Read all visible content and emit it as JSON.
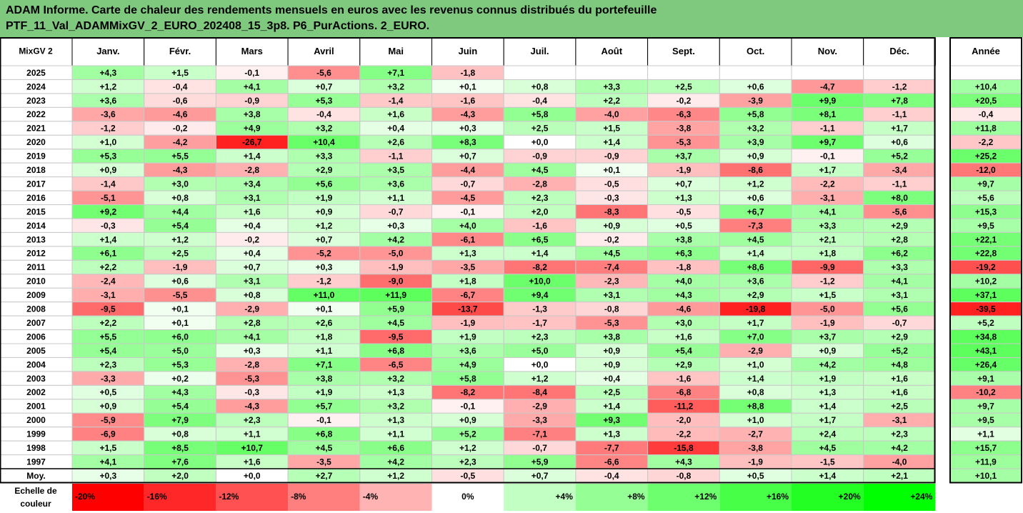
{
  "chart_data": {
    "type": "heatmap",
    "title_line1": "ADAM Informe. Carte de chaleur des rendements mensuels en euros avec les revenus connus distribués du portefeuille",
    "title_line2": "PTF_11_Val_ADAMMixGV_2_EURO_202408_15_3p8. P6_PurActions. 2_EURO.",
    "corner_label": "MixGV 2",
    "months": [
      "Janv.",
      "Févr.",
      "Mars",
      "Avril",
      "Mai",
      "Juin",
      "Juil.",
      "Août",
      "Sept.",
      "Oct.",
      "Nov.",
      "Déc."
    ],
    "year_header": "Année",
    "rows": [
      {
        "year": "2025",
        "values": [
          "+4,3",
          "+1,5",
          "-0,1",
          "-5,6",
          "+7,1",
          "-1,8",
          "",
          "",
          "",
          "",
          "",
          ""
        ],
        "annual": ""
      },
      {
        "year": "2024",
        "values": [
          "+1,2",
          "-0,4",
          "+4,1",
          "+0,7",
          "+3,2",
          "+0,1",
          "+0,8",
          "+3,3",
          "+2,5",
          "+0,6",
          "-4,7",
          "-1,2"
        ],
        "annual": "+10,4"
      },
      {
        "year": "2023",
        "values": [
          "+3,6",
          "-0,6",
          "-0,9",
          "+5,3",
          "-1,4",
          "-1,6",
          "-0,4",
          "+2,2",
          "-0,2",
          "-3,9",
          "+9,9",
          "+7,8"
        ],
        "annual": "+20,5"
      },
      {
        "year": "2022",
        "values": [
          "-3,6",
          "-4,6",
          "+3,8",
          "-0,4",
          "+1,6",
          "-4,3",
          "+5,8",
          "-4,0",
          "-6,3",
          "+5,8",
          "+8,1",
          "-1,1"
        ],
        "annual": "-0,4"
      },
      {
        "year": "2021",
        "values": [
          "-1,2",
          "-0,2",
          "+4,9",
          "+3,2",
          "+0,4",
          "+0,3",
          "+2,5",
          "+1,5",
          "-3,8",
          "+3,2",
          "-1,1",
          "+1,7"
        ],
        "annual": "+11,8"
      },
      {
        "year": "2020",
        "values": [
          "+1,0",
          "-4,2",
          "-26,7",
          "+10,4",
          "+2,6",
          "+8,3",
          "+0,0",
          "+1,4",
          "-5,3",
          "+3,9",
          "+9,7",
          "+0,6"
        ],
        "annual": "-2,2"
      },
      {
        "year": "2019",
        "values": [
          "+5,3",
          "+5,5",
          "+1,4",
          "+3,3",
          "-1,1",
          "+0,7",
          "-0,9",
          "-0,9",
          "+3,7",
          "+0,9",
          "-0,1",
          "+5,2"
        ],
        "annual": "+25,2"
      },
      {
        "year": "2018",
        "values": [
          "+0,9",
          "-4,3",
          "-2,8",
          "+2,9",
          "+3,5",
          "-4,4",
          "+4,5",
          "+0,1",
          "-1,9",
          "-8,6",
          "+1,7",
          "-3,4"
        ],
        "annual": "-12,0"
      },
      {
        "year": "2017",
        "values": [
          "-1,4",
          "+3,0",
          "+3,4",
          "+5,6",
          "+3,6",
          "-0,7",
          "-2,8",
          "-0,5",
          "+0,7",
          "+1,2",
          "-2,2",
          "-1,1"
        ],
        "annual": "+9,7"
      },
      {
        "year": "2016",
        "values": [
          "-5,1",
          "+0,8",
          "+3,1",
          "+1,9",
          "+1,1",
          "-4,5",
          "+2,3",
          "-0,3",
          "+1,3",
          "+0,6",
          "-3,1",
          "+8,0"
        ],
        "annual": "+5,6"
      },
      {
        "year": "2015",
        "values": [
          "+9,2",
          "+4,4",
          "+1,6",
          "+0,9",
          "-0,7",
          "-0,1",
          "+2,0",
          "-8,3",
          "-0,5",
          "+6,7",
          "+4,1",
          "-5,6"
        ],
        "annual": "+15,3"
      },
      {
        "year": "2014",
        "values": [
          "-0,3",
          "+5,4",
          "+0,4",
          "+1,2",
          "+0,3",
          "+4,0",
          "-1,6",
          "+0,9",
          "+0,5",
          "-7,3",
          "+3,3",
          "+2,9"
        ],
        "annual": "+9,5"
      },
      {
        "year": "2013",
        "values": [
          "+1,4",
          "+1,2",
          "-0,2",
          "+0,7",
          "+4,2",
          "-6,1",
          "+6,5",
          "-0,2",
          "+3,8",
          "+4,5",
          "+2,1",
          "+2,8"
        ],
        "annual": "+22,1"
      },
      {
        "year": "2012",
        "values": [
          "+6,1",
          "+2,5",
          "+0,4",
          "-5,2",
          "-5,0",
          "+1,3",
          "+1,4",
          "+4,5",
          "+6,3",
          "+1,4",
          "+1,8",
          "+6,2"
        ],
        "annual": "+22,8"
      },
      {
        "year": "2011",
        "values": [
          "+2,2",
          "-1,9",
          "+0,7",
          "+0,3",
          "-1,9",
          "-3,5",
          "-8,2",
          "-7,4",
          "-1,8",
          "+8,6",
          "-9,9",
          "+3,3"
        ],
        "annual": "-19,2"
      },
      {
        "year": "2010",
        "values": [
          "-2,4",
          "+0,6",
          "+3,1",
          "-1,2",
          "-9,0",
          "+1,8",
          "+10,0",
          "-2,3",
          "+4,0",
          "+3,6",
          "-1,2",
          "+4,1"
        ],
        "annual": "+10,2"
      },
      {
        "year": "2009",
        "values": [
          "-3,1",
          "-5,5",
          "+0,8",
          "+11,0",
          "+11,9",
          "-6,7",
          "+9,4",
          "+3,1",
          "+4,3",
          "+2,9",
          "+1,5",
          "+3,1"
        ],
        "annual": "+37,1"
      },
      {
        "year": "2008",
        "values": [
          "-9,5",
          "+0,1",
          "-2,9",
          "+0,1",
          "+5,9",
          "-13,7",
          "-1,3",
          "-0,8",
          "-4,6",
          "-19,8",
          "-5,0",
          "+5,6"
        ],
        "annual": "-39,5"
      },
      {
        "year": "2007",
        "values": [
          "+2,2",
          "+0,1",
          "+2,8",
          "+2,6",
          "+4,5",
          "-1,9",
          "-1,7",
          "-5,3",
          "+3,0",
          "+1,7",
          "-1,9",
          "-0,7"
        ],
        "annual": "+5,2"
      },
      {
        "year": "2006",
        "values": [
          "+5,5",
          "+6,0",
          "+4,1",
          "+1,8",
          "-9,5",
          "+1,9",
          "+2,3",
          "+3,8",
          "+1,6",
          "+7,0",
          "+3,7",
          "+2,9"
        ],
        "annual": "+34,8"
      },
      {
        "year": "2005",
        "values": [
          "+5,4",
          "+5,0",
          "+0,3",
          "+1,1",
          "+6,8",
          "+3,6",
          "+5,0",
          "+0,9",
          "+5,4",
          "-2,9",
          "+0,9",
          "+5,2"
        ],
        "annual": "+43,1"
      },
      {
        "year": "2004",
        "values": [
          "+2,3",
          "+5,3",
          "-2,8",
          "+7,1",
          "-6,5",
          "+4,9",
          "+0,0",
          "+0,9",
          "+2,9",
          "+1,0",
          "+4,2",
          "+4,8"
        ],
        "annual": "+26,4"
      },
      {
        "year": "2003",
        "values": [
          "-3,3",
          "+0,2",
          "-5,3",
          "+3,8",
          "+3,2",
          "+5,8",
          "+1,2",
          "+0,4",
          "-1,6",
          "+1,4",
          "+1,9",
          "+1,6"
        ],
        "annual": "+9,1"
      },
      {
        "year": "2002",
        "values": [
          "+0,5",
          "+4,3",
          "-0,3",
          "+1,9",
          "+1,3",
          "-8,2",
          "-8,4",
          "+2,5",
          "-6,8",
          "+0,8",
          "+1,3",
          "+1,6"
        ],
        "annual": "-10,2"
      },
      {
        "year": "2001",
        "values": [
          "+0,9",
          "+5,4",
          "-4,3",
          "+5,7",
          "+3,2",
          "-0,1",
          "-2,9",
          "+1,4",
          "-11,2",
          "+8,8",
          "+1,4",
          "+2,5"
        ],
        "annual": "+9,7"
      },
      {
        "year": "2000",
        "values": [
          "-5,9",
          "+7,9",
          "+2,3",
          "-0,1",
          "+1,3",
          "+0,9",
          "-3,3",
          "+9,3",
          "-2,0",
          "+1,0",
          "+1,7",
          "-3,1"
        ],
        "annual": "+9,5"
      },
      {
        "year": "1999",
        "values": [
          "-6,9",
          "+0,8",
          "+1,1",
          "+6,8",
          "+1,1",
          "+5,2",
          "-7,1",
          "+1,3",
          "-2,2",
          "-2,7",
          "+2,4",
          "+2,3"
        ],
        "annual": "+1,1"
      },
      {
        "year": "1998",
        "values": [
          "+1,5",
          "+8,5",
          "+10,7",
          "+4,5",
          "+6,6",
          "+1,2",
          "-0,7",
          "-7,7",
          "-15,8",
          "-3,8",
          "+4,5",
          "+4,2"
        ],
        "annual": "+15,7"
      },
      {
        "year": "1997",
        "values": [
          "+4,1",
          "+7,6",
          "+1,6",
          "-3,5",
          "+4,2",
          "+2,3",
          "+5,9",
          "-6,6",
          "+4,3",
          "-1,9",
          "-1,5",
          "-4,0"
        ],
        "annual": "+11,9"
      }
    ],
    "average": {
      "label": "Moy.",
      "values": [
        "+0,3",
        "+2,0",
        "+0,0",
        "+2,7",
        "+1,2",
        "-0,5",
        "+0,7",
        "-0,4",
        "-0,8",
        "+0,5",
        "+1,4",
        "+2,1"
      ],
      "annual": "+10,1"
    },
    "scale": {
      "label_line1": "Echelle de",
      "label_line2": "couleur",
      "values": [
        -20,
        -16,
        -12,
        -8,
        -4,
        0,
        4,
        8,
        12,
        16,
        20,
        24
      ],
      "labels": [
        "-20%",
        "-16%",
        "-12%",
        "-8%",
        "-4%",
        "0%",
        "+4%",
        "+8%",
        "+12%",
        "+16%",
        "+20%",
        "+24%"
      ]
    },
    "colors": {
      "title_bg": "#7fc97f",
      "neg_max": "#ff0000",
      "pos_max": "#00ff00",
      "neutral": "#ffffff",
      "grid": "#c8c8c8",
      "border": "#000000"
    }
  }
}
